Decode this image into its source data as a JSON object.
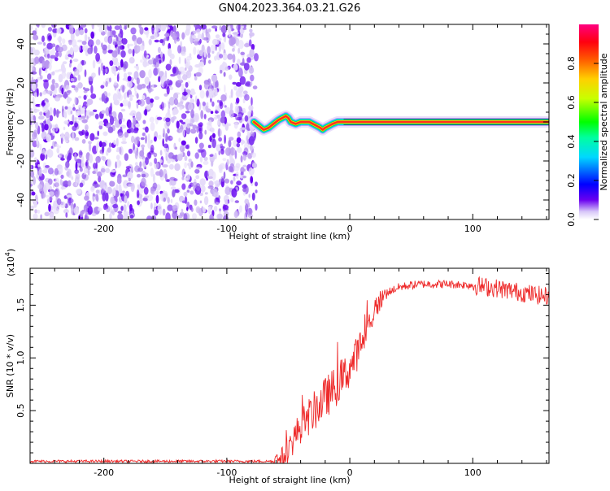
{
  "title": "GN04.2023.364.03.21.G26",
  "chart_data": [
    {
      "type": "heatmap",
      "title": "GN04.2023.364.03.21.G26",
      "xlabel": "Height of straight line (km)",
      "ylabel": "Frequency (Hz)",
      "xlim": [
        -260,
        162
      ],
      "ylim": [
        -50,
        50
      ],
      "xticks": [
        -200,
        -100,
        0,
        100
      ],
      "yticks": [
        -40,
        -20,
        0,
        20,
        40
      ],
      "noise_region_x": [
        -260,
        -76
      ],
      "signal_track": {
        "x": [
          -78,
          -74,
          -70,
          -66,
          -62,
          -58,
          -55,
          -52,
          -50,
          -48,
          -44,
          -40,
          -36,
          -33,
          -30,
          -27,
          -24,
          -22,
          -20,
          -17,
          -14,
          -10,
          -5,
          0,
          20,
          60,
          100,
          140,
          162
        ],
        "y": [
          0,
          -2,
          -4,
          -3,
          -1,
          1,
          2,
          3,
          2,
          0,
          -1,
          0,
          0,
          0,
          -1,
          -2,
          -3,
          -4,
          -3,
          -2,
          -1,
          0,
          0,
          0,
          0,
          0,
          0,
          0,
          0
        ]
      },
      "colorbar": {
        "label": "Normalized spectral amplitude",
        "range": [
          0.0,
          1.0
        ],
        "ticks": [
          "0.0",
          "0.2",
          "0.4",
          "0.6",
          "0.8"
        ]
      },
      "colors": [
        "#ffffff",
        "#a87ef0",
        "#5500ee",
        "#0000ff",
        "#00c8ff",
        "#00ff00",
        "#ffff00",
        "#ff8000",
        "#ff0000",
        "#ff0066"
      ]
    },
    {
      "type": "line",
      "xlabel": "Height of straight line (km)",
      "ylabel": "SNR (10 * v/v)",
      "y_multiplier": "(x10",
      "y_multiplier_exp": "4",
      "xlim": [
        -260,
        162
      ],
      "ylim": [
        0,
        1.85
      ],
      "xticks": [
        -200,
        -100,
        0,
        100
      ],
      "yticks": [
        "0.5",
        "1.0",
        "1.5"
      ],
      "series": [
        {
          "name": "SNR",
          "color": "#ee2a2a",
          "x": [
            -260,
            -200,
            -120,
            -60,
            -55,
            -50,
            -45,
            -40,
            -35,
            -30,
            -25,
            -20,
            -15,
            -10,
            -5,
            0,
            5,
            10,
            15,
            20,
            25,
            30,
            40,
            50,
            60,
            80,
            100,
            120,
            130,
            140,
            150,
            162
          ],
          "y": [
            0.02,
            0.02,
            0.02,
            0.02,
            0.05,
            0.12,
            0.25,
            0.35,
            0.42,
            0.48,
            0.55,
            0.62,
            0.68,
            0.75,
            0.82,
            0.9,
            1.02,
            1.15,
            1.3,
            1.45,
            1.55,
            1.62,
            1.67,
            1.69,
            1.7,
            1.7,
            1.69,
            1.66,
            1.64,
            1.62,
            1.6,
            1.58
          ]
        }
      ]
    }
  ]
}
